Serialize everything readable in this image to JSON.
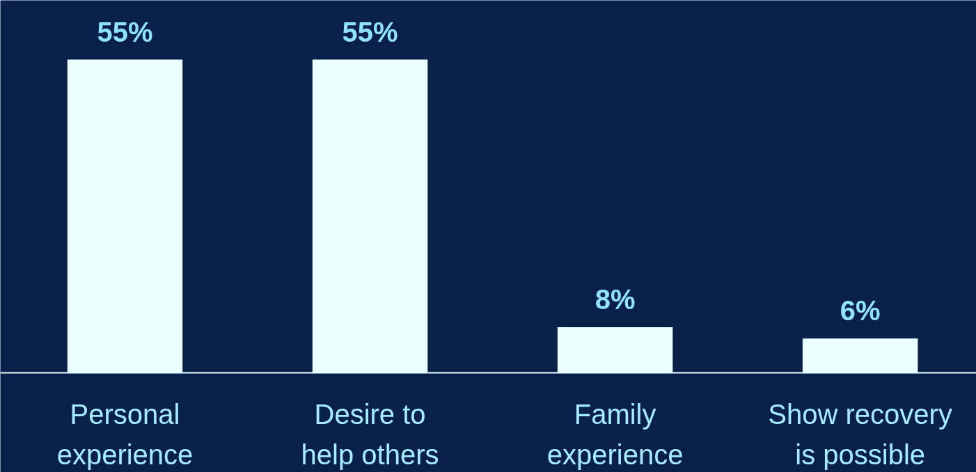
{
  "chart_data": {
    "type": "bar",
    "categories": [
      "Personal experience",
      "Desire to help others",
      "Family experience",
      "Show recovery is possible"
    ],
    "values": [
      55,
      55,
      8,
      6
    ],
    "color": "#eaffff",
    "data_labels": true,
    "value_labels": [
      "55%",
      "55%",
      "8%",
      "6%"
    ],
    "grid": false
  }
}
